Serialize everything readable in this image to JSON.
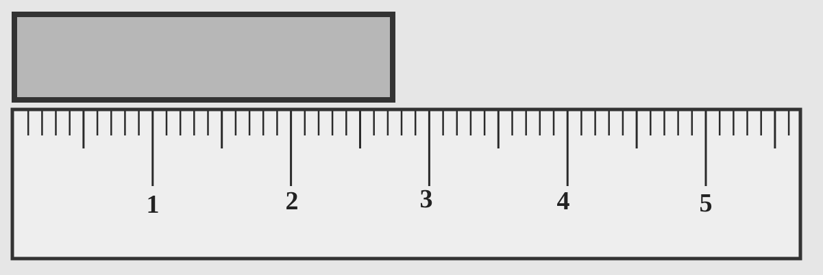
{
  "ruler": {
    "unit_labels": [
      "1",
      "2",
      "3",
      "4",
      "5"
    ],
    "subdivisions_per_unit": 10
  },
  "bar": {
    "fill_color": "#b7b7b7",
    "border_color": "#333333",
    "measured_length_units": 2.75
  },
  "colors": {
    "background": "#e6e6e6",
    "ruler_fill": "#eeeeee",
    "ruler_border": "#333333",
    "tick": "#2a2a2a",
    "label": "#222222"
  }
}
